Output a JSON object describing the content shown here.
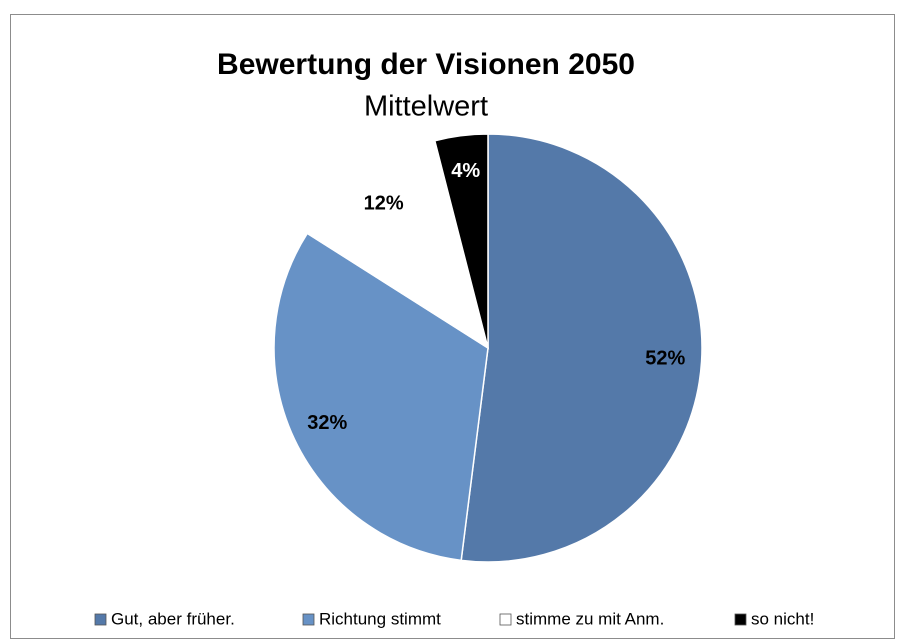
{
  "chart_data": {
    "type": "pie",
    "title": "Bewertung der Visionen 2050",
    "subtitle": "Mittelwert",
    "categories": [
      "Gut, aber früher.",
      "Richtung stimmt",
      "stimme zu mit Anm.",
      "so nicht!"
    ],
    "values": [
      52,
      32,
      12,
      4
    ],
    "value_labels": [
      "52%",
      "32%",
      "12%",
      "4%"
    ],
    "colors": [
      "#5479a9",
      "#6792c6",
      "#ffffff",
      "#000000"
    ],
    "legend": "bottom"
  }
}
